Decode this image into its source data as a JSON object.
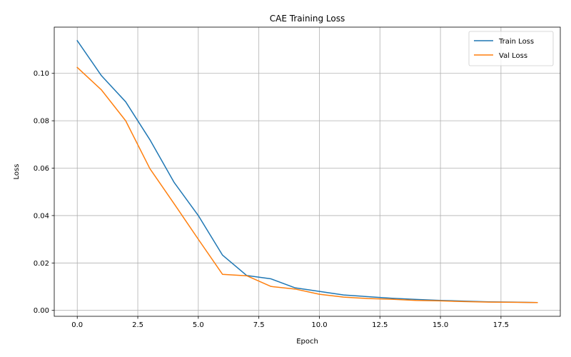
{
  "chart_data": {
    "type": "line",
    "title": "CAE Training Loss",
    "xlabel": "Epoch",
    "ylabel": "Loss",
    "xlim": [
      -0.95,
      19.95
    ],
    "ylim": [
      -0.0025,
      0.1195
    ],
    "x_ticks": [
      0.0,
      2.5,
      5.0,
      7.5,
      10.0,
      12.5,
      15.0,
      17.5
    ],
    "x_tick_labels": [
      "0.0",
      "2.5",
      "5.0",
      "7.5",
      "10.0",
      "12.5",
      "15.0",
      "17.5"
    ],
    "y_ticks": [
      0.0,
      0.02,
      0.04,
      0.06,
      0.08,
      0.1
    ],
    "y_tick_labels": [
      "0.00",
      "0.02",
      "0.04",
      "0.06",
      "0.08",
      "0.10"
    ],
    "grid": true,
    "legend_position": "top-right",
    "x": [
      0,
      1,
      2,
      3,
      4,
      5,
      6,
      7,
      8,
      9,
      10,
      11,
      12,
      13,
      14,
      15,
      16,
      17,
      18,
      19
    ],
    "series": [
      {
        "name": "Train Loss",
        "color": "#1f77b4",
        "values": [
          0.1138,
          0.099,
          0.088,
          0.072,
          0.054,
          0.04,
          0.0233,
          0.0147,
          0.0133,
          0.0095,
          0.008,
          0.0065,
          0.0058,
          0.0051,
          0.0046,
          0.0042,
          0.0039,
          0.0036,
          0.0035,
          0.0033
        ]
      },
      {
        "name": "Val Loss",
        "color": "#ff7f0e",
        "values": [
          0.1025,
          0.093,
          0.08,
          0.0598,
          0.045,
          0.03,
          0.0152,
          0.0146,
          0.0101,
          0.009,
          0.0068,
          0.0056,
          0.005,
          0.0047,
          0.0042,
          0.004,
          0.0037,
          0.0035,
          0.0034,
          0.0033
        ]
      }
    ]
  }
}
